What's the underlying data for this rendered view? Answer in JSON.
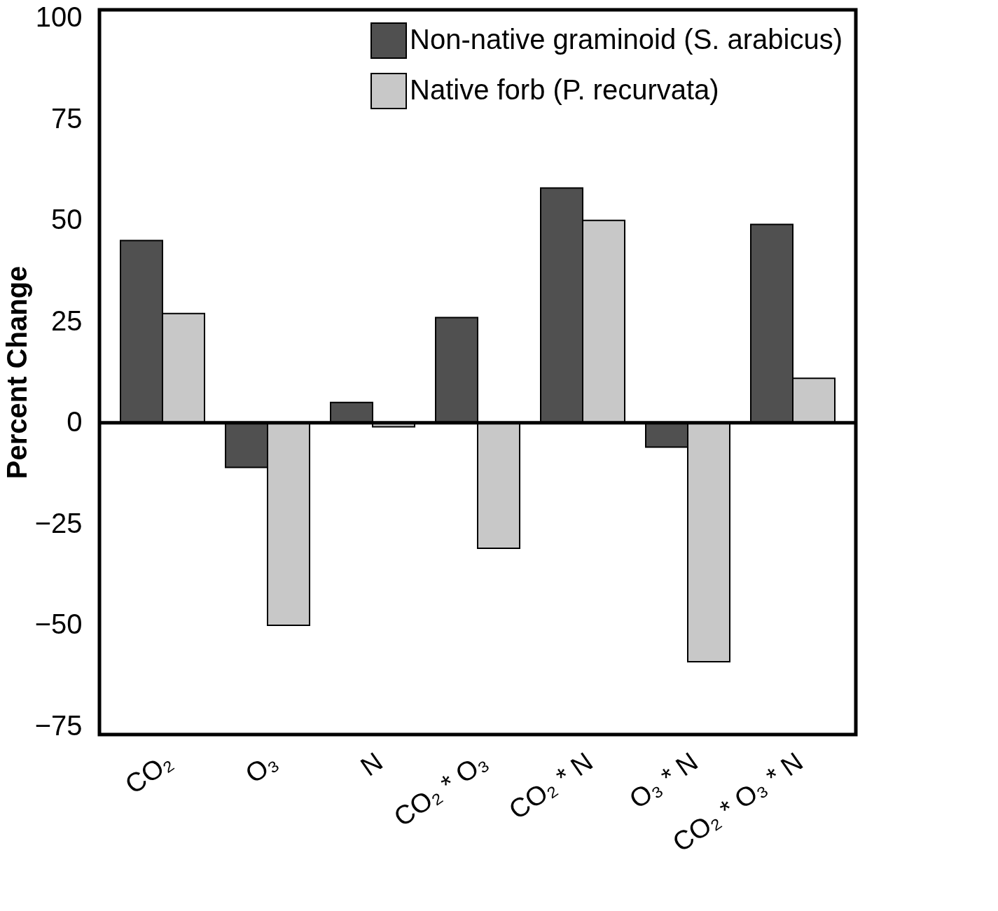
{
  "chart_data": {
    "type": "bar",
    "ylabel": "Percent Change",
    "categories": [
      "CO₂",
      "O₃",
      "N",
      "CO₂ * O₃",
      "CO₂ * N",
      "O₃ * N",
      "CO₂ * O₃ * N"
    ],
    "series": [
      {
        "name": "Non-native graminoid (S. arabicus)",
        "color": "#505050",
        "values": [
          45,
          -11,
          5,
          26,
          58,
          -6,
          49
        ]
      },
      {
        "name": "Native forb (P. recurvata)",
        "color": "#c8c8c8",
        "values": [
          27,
          -50,
          -1,
          -31,
          50,
          -59,
          11
        ]
      }
    ],
    "ylim": [
      -77,
      102
    ],
    "yticks": [
      -75,
      -50,
      -25,
      0,
      25,
      50,
      75,
      100
    ],
    "ref_lines": [
      {
        "axis": "y",
        "value": 0
      }
    ],
    "grid": false,
    "legend": "top right"
  }
}
